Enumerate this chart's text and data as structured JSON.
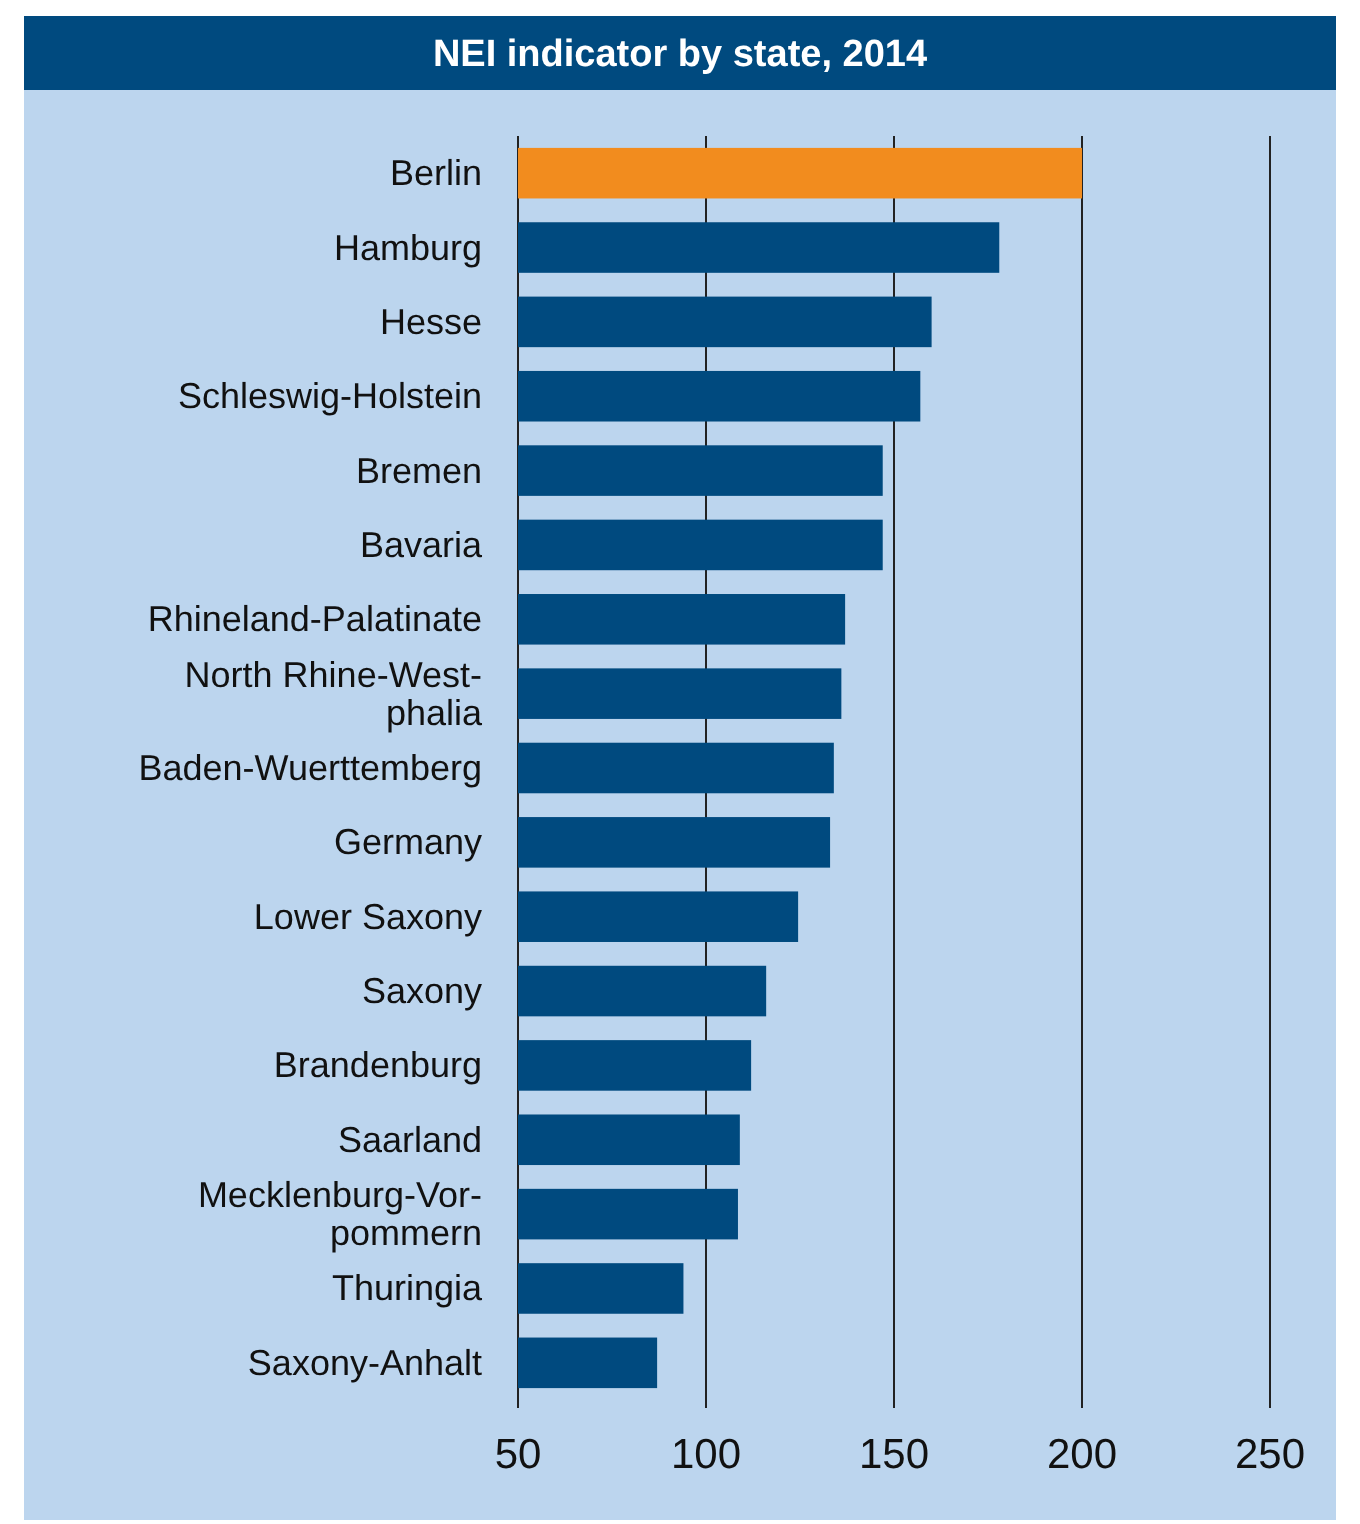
{
  "chart_data": {
    "type": "bar",
    "orientation": "horizontal",
    "title": "NEI indicator by state, 2014",
    "categories": [
      "Berlin",
      "Hamburg",
      "Hesse",
      "Schleswig-Holstein",
      "Bremen",
      "Bavaria",
      "Rhineland-Palatinate",
      "North Rhine-West-\nphalia",
      "Baden-Wuerttemberg",
      "Germany",
      "Lower Saxony",
      "Saxony",
      "Brandenburg",
      "Saarland",
      "Mecklenburg-Vor-\npommern",
      "Thuringia",
      "Saxony-Anhalt"
    ],
    "values": [
      200,
      178,
      160,
      157,
      147,
      147,
      137,
      136,
      134,
      133,
      124.5,
      116,
      112,
      109,
      108.5,
      94,
      87
    ],
    "colors": [
      "#f28c1e",
      "#004a7f",
      "#004a7f",
      "#004a7f",
      "#004a7f",
      "#004a7f",
      "#004a7f",
      "#004a7f",
      "#004a7f",
      "#004a7f",
      "#004a7f",
      "#004a7f",
      "#004a7f",
      "#004a7f",
      "#004a7f",
      "#004a7f",
      "#004a7f"
    ],
    "xlim": [
      50,
      250
    ],
    "xticks": [
      50,
      100,
      150,
      200,
      250
    ],
    "grid": "x"
  }
}
